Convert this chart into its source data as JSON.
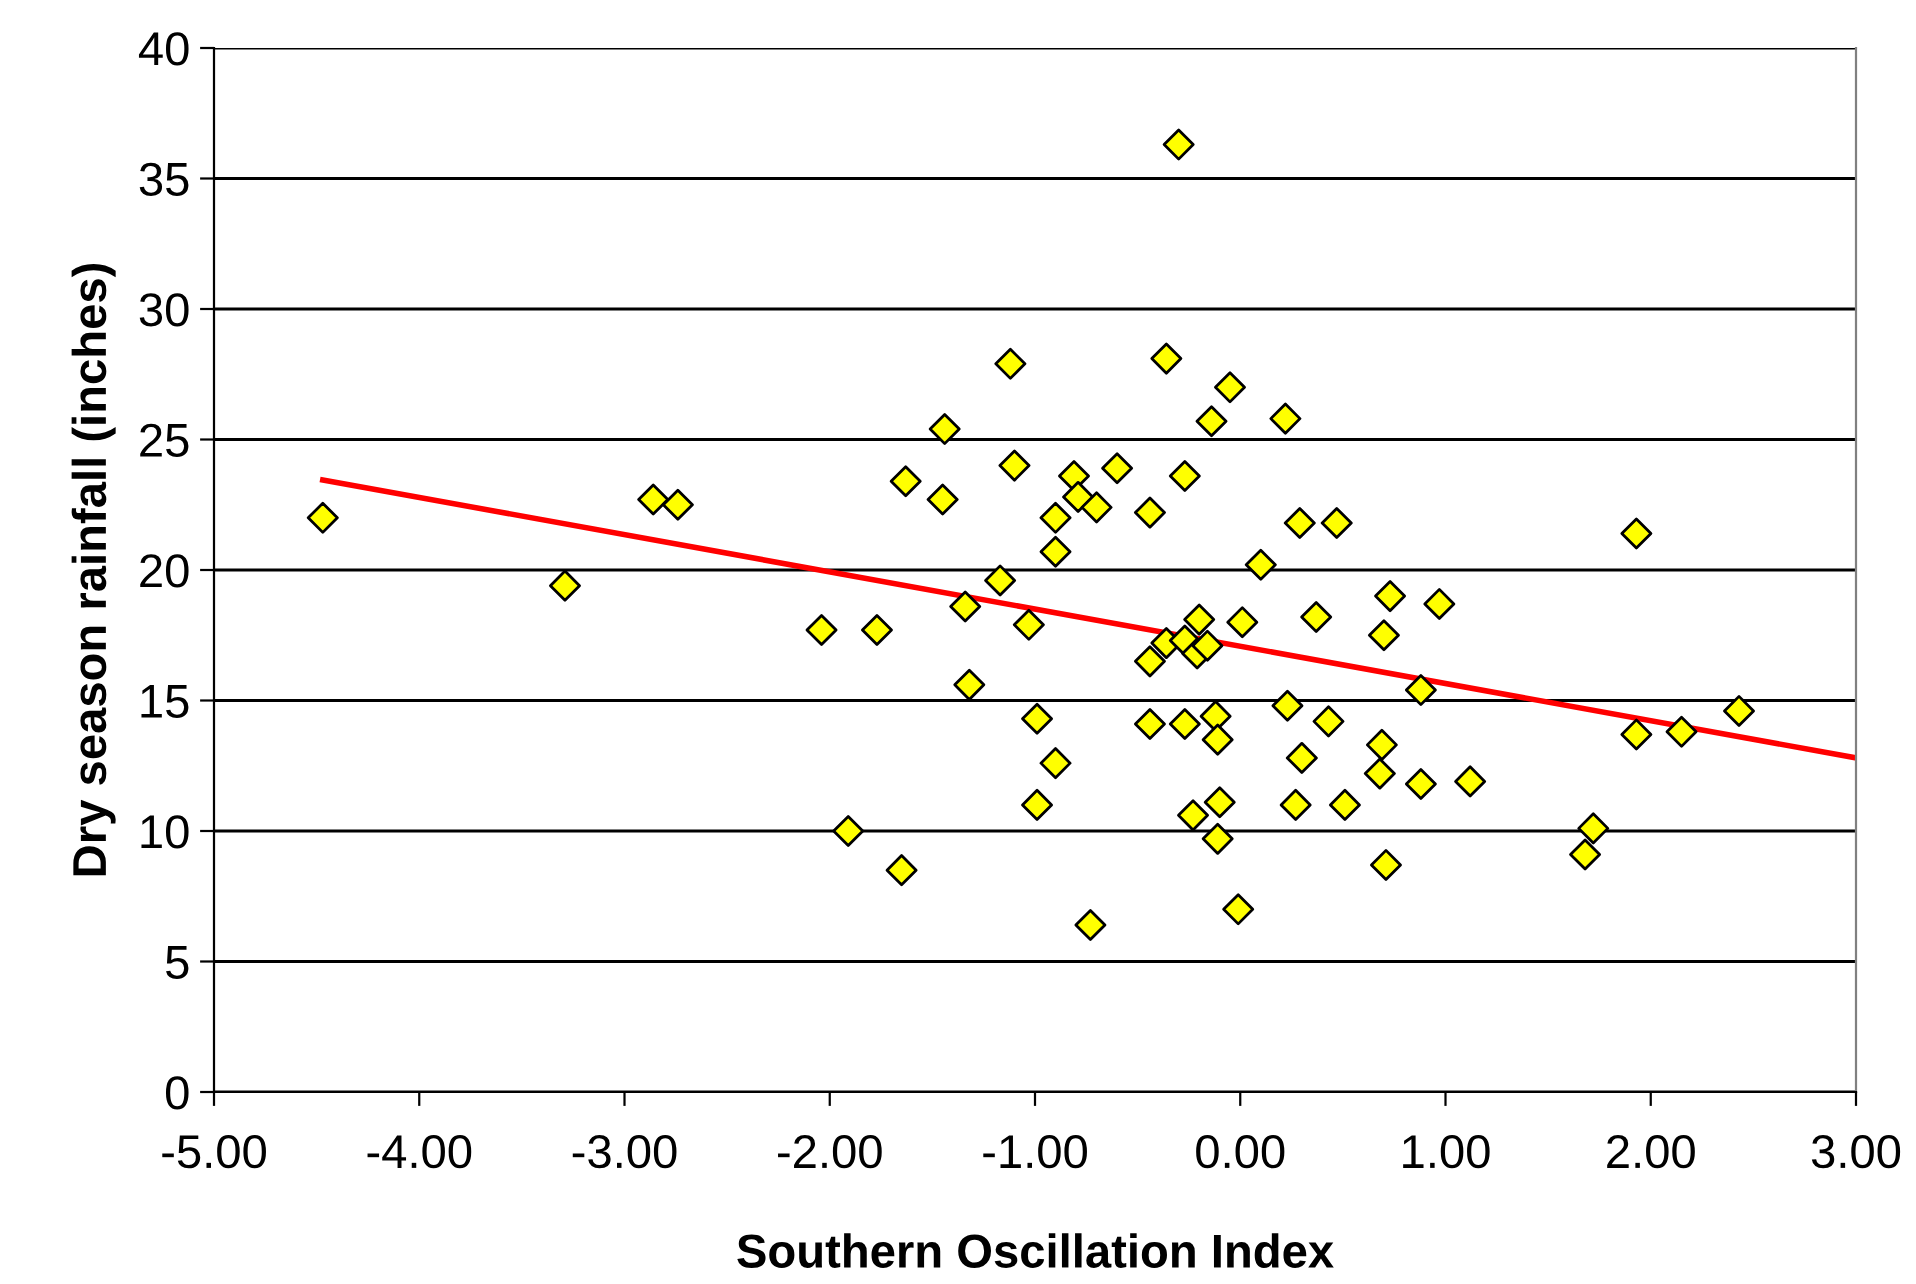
{
  "chart_data": {
    "type": "scatter",
    "xlabel": "Southern Oscillation Index",
    "ylabel": "Dry season rainfall (inches)",
    "xlim": [
      -5,
      3
    ],
    "xticks": [
      {
        "value": -5,
        "label": "-5.00"
      },
      {
        "value": -4,
        "label": "-4.00"
      },
      {
        "value": -3,
        "label": "-3.00"
      },
      {
        "value": -2,
        "label": "-2.00"
      },
      {
        "value": -1,
        "label": "-1.00"
      },
      {
        "value": 0,
        "label": "0.00"
      },
      {
        "value": 1,
        "label": "1.00"
      },
      {
        "value": 2,
        "label": "2.00"
      },
      {
        "value": 3,
        "label": "3.00"
      }
    ],
    "ylim": [
      0,
      40
    ],
    "yticks": [
      0,
      5,
      10,
      15,
      20,
      25,
      30,
      35,
      40
    ],
    "grid": "y",
    "legend": false,
    "series": [
      {
        "color": "#ffff00",
        "marker": "diamond",
        "x": [
          -4.47,
          -3.29,
          -2.86,
          -2.74,
          -2.04,
          -1.91,
          -1.65,
          -0.3,
          -1.12,
          -0.36,
          -0.05,
          -1.44,
          -0.14,
          0.22,
          -1.63,
          -1.1,
          -0.81,
          -0.6,
          -0.27,
          -1.45,
          -0.79,
          -0.7,
          -0.9,
          -0.44,
          0.29,
          0.47,
          -0.9,
          0.1,
          -1.17,
          0.73,
          0.97,
          -1.34,
          -1.77,
          -1.03,
          -0.2,
          0.01,
          0.37,
          0.7,
          -0.36,
          -0.27,
          -0.21,
          -0.16,
          -0.44,
          -1.32,
          0.88,
          -0.99,
          -0.44,
          -0.27,
          -0.12,
          0.23,
          0.43,
          -0.11,
          0.69,
          -0.9,
          0.3,
          0.68,
          0.88,
          1.12,
          -0.99,
          -0.23,
          -0.1,
          0.27,
          0.51,
          -0.11,
          0.71,
          -0.73,
          -0.01,
          1.93,
          1.93,
          2.15,
          2.43,
          1.72,
          1.68
        ],
        "values": [
          22.0,
          19.4,
          22.7,
          22.5,
          17.7,
          10.0,
          8.5,
          36.3,
          27.9,
          28.1,
          27.0,
          25.4,
          25.7,
          25.8,
          23.4,
          24.0,
          23.6,
          23.9,
          23.6,
          22.7,
          22.8,
          22.4,
          22.0,
          22.2,
          21.8,
          21.8,
          20.7,
          20.2,
          19.6,
          19.0,
          18.7,
          18.6,
          17.7,
          17.9,
          18.1,
          18.0,
          18.2,
          17.5,
          17.2,
          17.3,
          16.8,
          17.1,
          16.5,
          15.6,
          15.4,
          14.3,
          14.1,
          14.1,
          14.4,
          14.8,
          14.2,
          13.5,
          13.3,
          12.6,
          12.8,
          12.2,
          11.8,
          11.9,
          11.0,
          10.6,
          11.1,
          11.0,
          11.0,
          9.7,
          8.7,
          6.4,
          7.0,
          21.4,
          13.7,
          13.8,
          14.6,
          10.1,
          9.1
        ]
      },
      {
        "type": "line",
        "color": "#ff0000",
        "marker": "none",
        "line_style": "solid",
        "x": [
          -4.47,
          3.0
        ],
        "values": [
          23.45,
          12.8
        ]
      }
    ]
  }
}
